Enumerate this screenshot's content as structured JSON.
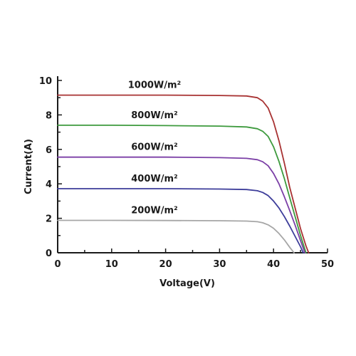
{
  "chart_data": {
    "type": "line",
    "title": "",
    "xlabel": "Voltage(V)",
    "ylabel": "Current(A)",
    "xlim": [
      0,
      50
    ],
    "ylim": [
      0,
      10
    ],
    "xticks": [
      0,
      10,
      20,
      30,
      40,
      50
    ],
    "yticks": [
      0,
      2,
      4,
      6,
      8,
      10
    ],
    "grid": false,
    "legend": "inline-labels",
    "series": [
      {
        "name": "1000W/m²",
        "color": "#a83232",
        "x": [
          0,
          10,
          20,
          30,
          35,
          37,
          38,
          39,
          40,
          41,
          42,
          43,
          44,
          45,
          46,
          46.5
        ],
        "y": [
          9.15,
          9.15,
          9.15,
          9.13,
          9.1,
          9.0,
          8.8,
          8.4,
          7.6,
          6.5,
          5.2,
          3.8,
          2.6,
          1.4,
          0.4,
          0
        ]
      },
      {
        "name": "800W/m²",
        "color": "#3d9a3d",
        "x": [
          0,
          10,
          20,
          30,
          35,
          37,
          38,
          39,
          40,
          41,
          42,
          43,
          44,
          45,
          46
        ],
        "y": [
          7.4,
          7.4,
          7.38,
          7.35,
          7.3,
          7.2,
          7.05,
          6.75,
          6.15,
          5.3,
          4.3,
          3.2,
          2.1,
          1.0,
          0
        ]
      },
      {
        "name": "600W/m²",
        "color": "#7b3fa6",
        "x": [
          0,
          10,
          20,
          30,
          35,
          37,
          38,
          39,
          40,
          41,
          42,
          43,
          44,
          45,
          45.8
        ],
        "y": [
          5.55,
          5.55,
          5.55,
          5.52,
          5.48,
          5.4,
          5.28,
          5.05,
          4.6,
          4.0,
          3.25,
          2.45,
          1.6,
          0.7,
          0
        ]
      },
      {
        "name": "400W/m²",
        "color": "#3d3d9a",
        "x": [
          0,
          10,
          20,
          30,
          35,
          37,
          38,
          39,
          40,
          41,
          42,
          43,
          44,
          45,
          45.5
        ],
        "y": [
          3.72,
          3.72,
          3.72,
          3.7,
          3.67,
          3.6,
          3.5,
          3.32,
          3.0,
          2.6,
          2.1,
          1.55,
          0.95,
          0.35,
          0
        ]
      },
      {
        "name": "200W/m²",
        "color": "#a6a6a6",
        "x": [
          0,
          10,
          20,
          30,
          35,
          37,
          38,
          39,
          40,
          41,
          42,
          43,
          43.8
        ],
        "y": [
          1.88,
          1.88,
          1.87,
          1.86,
          1.84,
          1.8,
          1.74,
          1.62,
          1.42,
          1.12,
          0.75,
          0.32,
          0
        ]
      }
    ]
  }
}
